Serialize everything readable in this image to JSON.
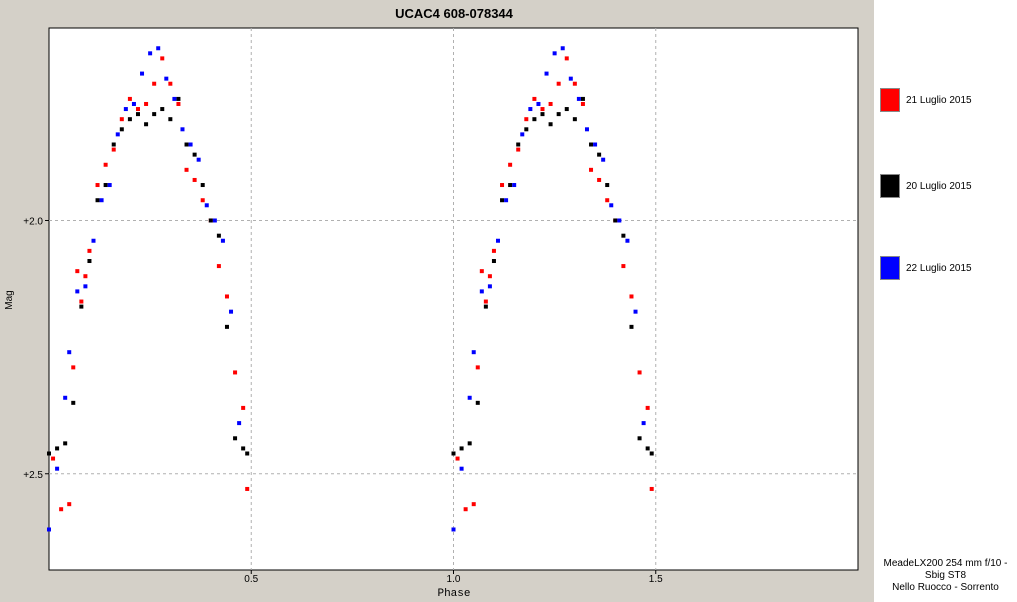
{
  "chart_data": {
    "type": "scatter",
    "title": "UCAC4 608-078344",
    "xlabel": "Phase",
    "ylabel": "Mag",
    "xlim": [
      0.0,
      2.0
    ],
    "ylim": [
      2.69,
      1.62
    ],
    "y_inverted": true,
    "xticks": [
      0.5,
      1.0,
      1.5
    ],
    "xtick_labels": [
      "0.5",
      "1.0",
      "1.5"
    ],
    "yticks": [
      2.0,
      2.5
    ],
    "ytick_labels": [
      "+2.0",
      "+2.5"
    ],
    "grid": "dashed",
    "legend_placement": "right",
    "series": [
      {
        "name": "21 Luglio 2015",
        "color": "#ff0000",
        "x": [
          0.01,
          0.03,
          0.05,
          0.06,
          0.07,
          0.08,
          0.09,
          0.1,
          0.12,
          0.14,
          0.16,
          0.18,
          0.2,
          0.22,
          0.24,
          0.26,
          0.28,
          0.3,
          0.32,
          0.34,
          0.36,
          0.38,
          0.4,
          0.42,
          0.44,
          0.46,
          0.48,
          0.49
        ],
        "y": [
          2.47,
          2.57,
          2.56,
          2.29,
          2.1,
          2.16,
          2.11,
          2.06,
          1.93,
          1.89,
          1.86,
          1.8,
          1.76,
          1.78,
          1.77,
          1.73,
          1.68,
          1.73,
          1.77,
          1.9,
          1.92,
          1.96,
          2.0,
          2.09,
          2.15,
          2.3,
          2.37,
          2.53
        ]
      },
      {
        "name": "20 Luglio 2015",
        "color": "#000000",
        "x": [
          0.0,
          0.02,
          0.04,
          0.06,
          0.08,
          0.1,
          0.12,
          0.14,
          0.16,
          0.18,
          0.2,
          0.22,
          0.24,
          0.26,
          0.28,
          0.3,
          0.32,
          0.34,
          0.36,
          0.38,
          0.4,
          0.42,
          0.44,
          0.46,
          0.48,
          0.49
        ],
        "y": [
          2.46,
          2.45,
          2.44,
          2.36,
          2.17,
          2.08,
          1.96,
          1.93,
          1.85,
          1.82,
          1.8,
          1.79,
          1.81,
          1.79,
          1.78,
          1.8,
          1.76,
          1.85,
          1.87,
          1.93,
          2.0,
          2.03,
          2.21,
          2.43,
          2.45,
          2.46
        ]
      },
      {
        "name": "22 Luglio 2015",
        "color": "#0000ff",
        "x": [
          0.0,
          0.02,
          0.04,
          0.05,
          0.07,
          0.09,
          0.11,
          0.13,
          0.15,
          0.17,
          0.19,
          0.21,
          0.23,
          0.25,
          0.27,
          0.29,
          0.31,
          0.33,
          0.35,
          0.37,
          0.39,
          0.41,
          0.43,
          0.45,
          0.47
        ],
        "y": [
          2.61,
          2.49,
          2.35,
          2.26,
          2.14,
          2.13,
          2.04,
          1.96,
          1.93,
          1.83,
          1.78,
          1.77,
          1.71,
          1.67,
          1.66,
          1.72,
          1.76,
          1.82,
          1.85,
          1.88,
          1.97,
          2.0,
          2.04,
          2.18,
          2.4
        ]
      }
    ]
  },
  "legend": {
    "items": [
      {
        "label": "21 Luglio 2015",
        "color": "#ff0000"
      },
      {
        "label": "20 Luglio 2015",
        "color": "#000000"
      },
      {
        "label": "22 Luglio 2015",
        "color": "#0000ff"
      }
    ]
  },
  "credits": {
    "line1": "MeadeLX200 254 mm f/10 -",
    "line2": "Sbig ST8",
    "line3": "Nello Ruocco - Sorrento"
  }
}
